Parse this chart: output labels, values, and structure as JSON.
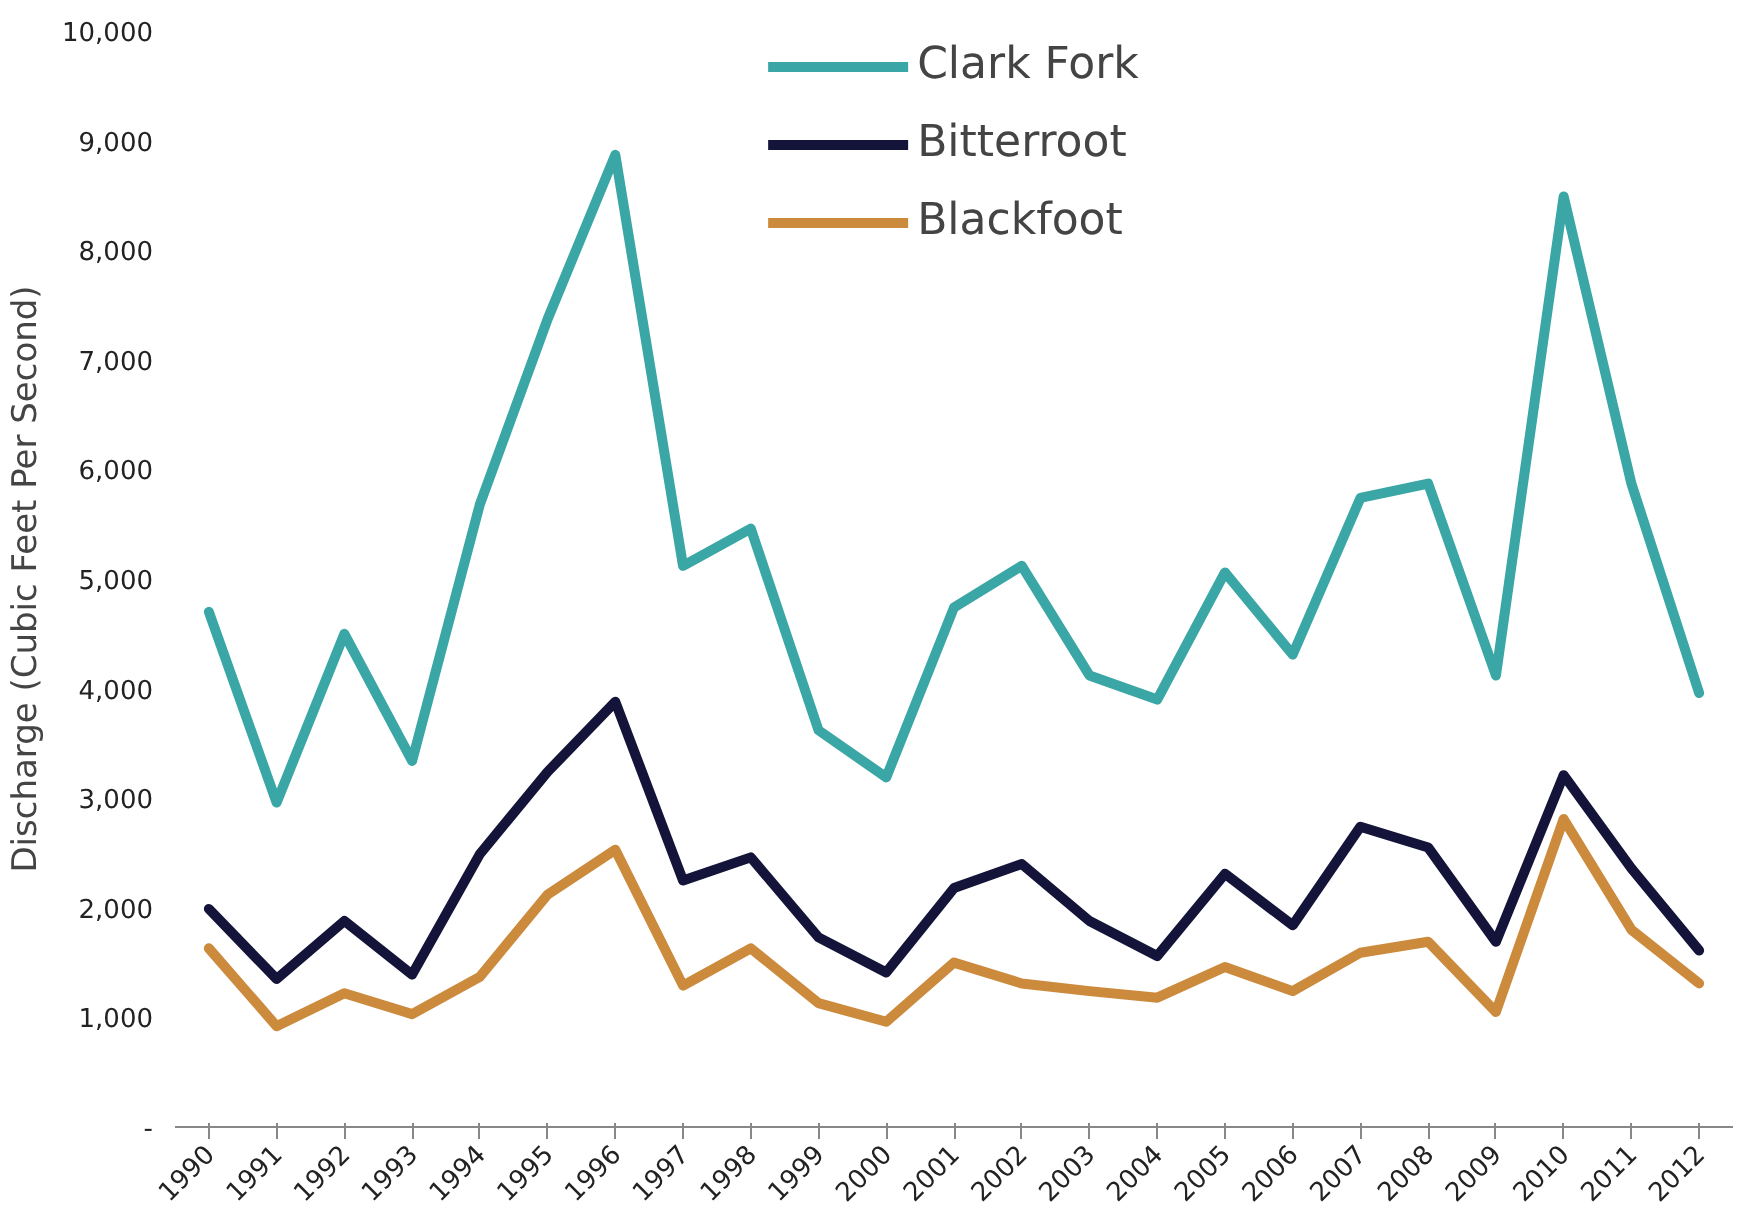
{
  "chart_data": {
    "type": "line",
    "ylabel": "Discharge (Cubic Feet Per Second)",
    "categories": [
      "1990",
      "1991",
      "1992",
      "1993",
      "1994",
      "1995",
      "1996",
      "1997",
      "1998",
      "1999",
      "2000",
      "2001",
      "2002",
      "2003",
      "2004",
      "2005",
      "2006",
      "2007",
      "2008",
      "2009",
      "2010",
      "2011",
      "2012"
    ],
    "ylim": [
      0,
      10000
    ],
    "yticks": [
      {
        "value": 0,
        "label": "-"
      },
      {
        "value": 1000,
        "label": "1,000"
      },
      {
        "value": 2000,
        "label": "2,000"
      },
      {
        "value": 3000,
        "label": "3,000"
      },
      {
        "value": 4000,
        "label": "4,000"
      },
      {
        "value": 5000,
        "label": "5,000"
      },
      {
        "value": 6000,
        "label": "6,000"
      },
      {
        "value": 7000,
        "label": "7,000"
      },
      {
        "value": 8000,
        "label": "8,000"
      },
      {
        "value": 9000,
        "label": "9,000"
      },
      {
        "value": 10000,
        "label": "10,000"
      }
    ],
    "series": [
      {
        "name": "Clark Fork",
        "color": "#3aa6a5",
        "values": [
          4700,
          2960,
          4500,
          3340,
          5680,
          7370,
          8870,
          5120,
          5460,
          3620,
          3190,
          4740,
          5120,
          4120,
          3900,
          5060,
          4310,
          5740,
          5870,
          4120,
          8490,
          5870,
          3960
        ]
      },
      {
        "name": "Bitterroot",
        "color": "#14143a",
        "values": [
          1990,
          1350,
          1880,
          1390,
          2490,
          3240,
          3880,
          2250,
          2460,
          1730,
          1410,
          2180,
          2400,
          1880,
          1560,
          2310,
          1840,
          2740,
          2550,
          1690,
          3210,
          2360,
          1610
        ]
      },
      {
        "name": "Blackfoot",
        "color": "#cc8a3c",
        "values": [
          1630,
          920,
          1220,
          1030,
          1370,
          2120,
          2530,
          1290,
          1630,
          1130,
          960,
          1500,
          1310,
          1240,
          1180,
          1460,
          1240,
          1590,
          1690,
          1050,
          2810,
          1800,
          1310
        ]
      }
    ],
    "grid": false,
    "legend": "top",
    "marker": "none",
    "line_style": "solid"
  }
}
